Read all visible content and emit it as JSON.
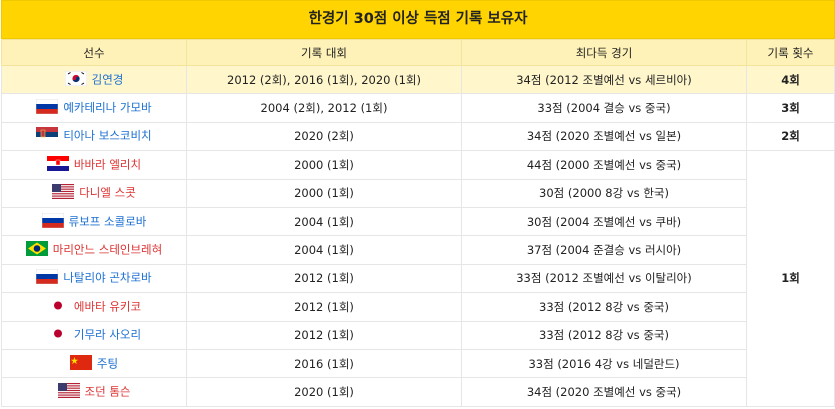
{
  "table": {
    "title": "한경기 30점 이상 득점 기록 보유자",
    "header": [
      "선수",
      "기록 대회",
      "최다득 경기",
      "기록 횟수"
    ],
    "rows": [
      [
        "김연경",
        "2012 (2회), 2016 (1회), 2020 (1회)",
        "34점 (2012 조별예선 vs 세르비아)",
        "4회"
      ],
      [
        "예카테리나 가모바",
        "2004 (2회), 2012 (1회)",
        "33점 (2004 결승 vs 중국)",
        "3회"
      ],
      [
        "티아나 보스코비치",
        "2020 (2회)",
        "34점 (2020 조별예선 vs 일본)",
        "2회"
      ],
      [
        "바바라 엘리치",
        "2000 (1회)",
        "44점 (2000 조별예선 vs 중국)",
        "1회"
      ],
      [
        "다니엘 스콧",
        "2000 (1회)",
        "30점 (2000 8강 vs 한국)"
      ],
      [
        "류보프 소콜로바",
        "2004 (1회)",
        "30점 (2004 조별예선 vs 쿠바)"
      ],
      [
        "마리안느 스테인브레혀",
        "2004 (1회)",
        "37점 (2004 준결승 vs 러시아)"
      ],
      [
        "나탈리야 곤차로바",
        "2012 (1회)",
        "33점 (2012 조별예선 vs 이탈리아)"
      ],
      [
        "에바타 유키코",
        "2012 (1회)",
        "33점 (2012 8강 vs 중국)"
      ],
      [
        "기무라 사오리",
        "2012 (1회)",
        "33점 (2012 8강 vs 중국)"
      ],
      [
        "주팅",
        "2016 (1회)",
        "33점 (2016 4강 vs 네덜란드)"
      ],
      [
        "조던 톰슨",
        "2020 (1회)",
        "34점 (2020 조별예선 vs 중국)"
      ]
    ]
  }
}
